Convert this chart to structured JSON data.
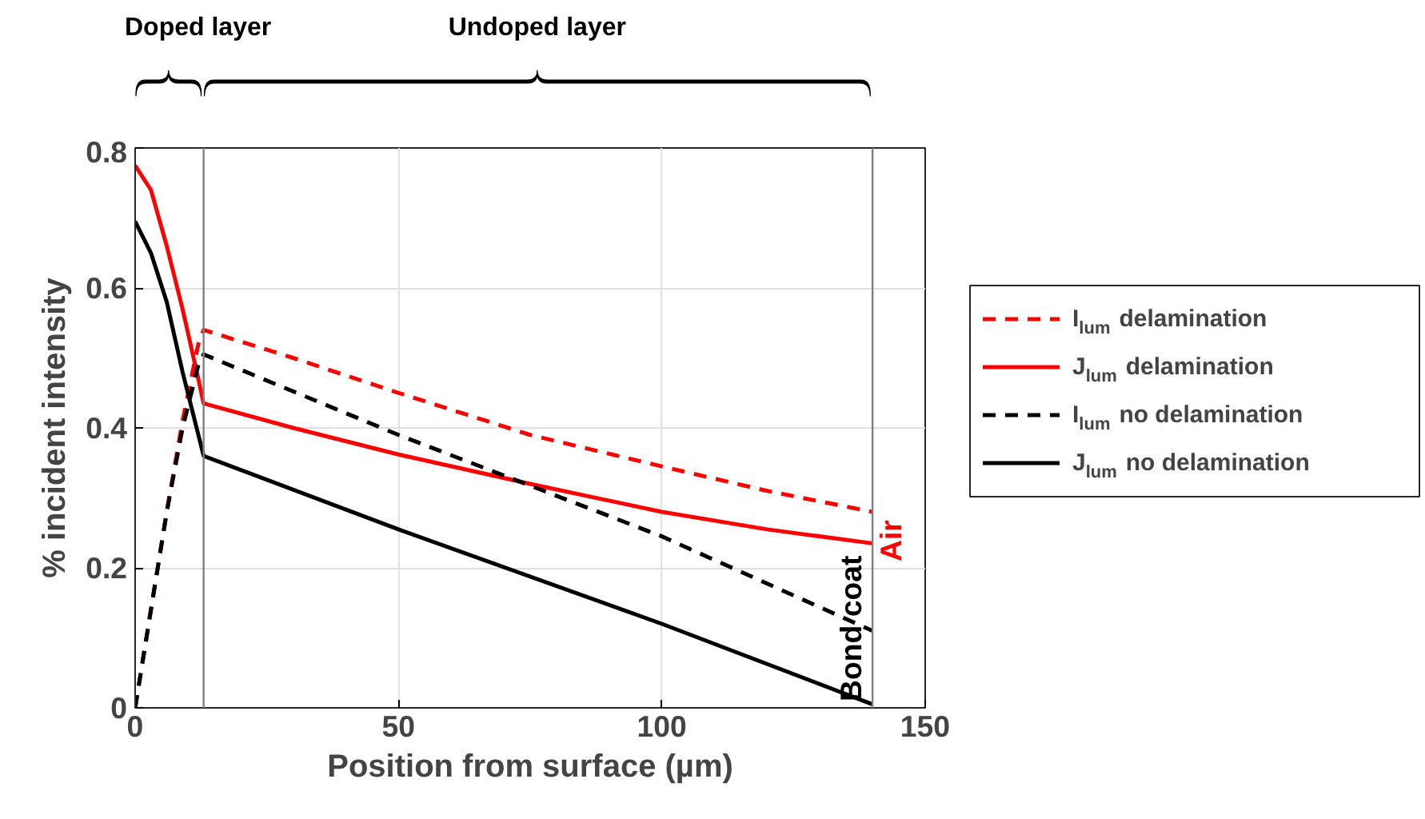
{
  "chart_data": {
    "type": "line",
    "xlabel": "Position from surface (µm)",
    "ylabel": "% incident intensity",
    "xlim": [
      0,
      150
    ],
    "ylim": [
      0,
      0.8
    ],
    "xticks": [
      0,
      50,
      100,
      150
    ],
    "yticks": [
      0,
      0.2,
      0.4,
      0.6,
      0.8
    ],
    "grid": true,
    "legend": "right",
    "marker": "none",
    "series": [
      {
        "name": "I$_{lum}$ delamination",
        "color": "#ff0000",
        "line_style": "dashed",
        "x": [
          0,
          3,
          6,
          9,
          12,
          13,
          30,
          50,
          75,
          100,
          120,
          140
        ],
        "values": [
          0,
          0.14,
          0.28,
          0.41,
          0.52,
          0.54,
          0.5,
          0.45,
          0.39,
          0.345,
          0.31,
          0.28
        ]
      },
      {
        "name": "J$_{lum}$ delamination",
        "color": "#ff0000",
        "line_style": "solid",
        "x": [
          0,
          3,
          6,
          9,
          12,
          13,
          30,
          50,
          75,
          100,
          120,
          140
        ],
        "values": [
          0.775,
          0.74,
          0.66,
          0.57,
          0.47,
          0.435,
          0.4,
          0.362,
          0.32,
          0.28,
          0.255,
          0.235
        ]
      },
      {
        "name": "I$_{lum}$ no delamination",
        "color": "#000000",
        "line_style": "dashed",
        "x": [
          0,
          3,
          6,
          9,
          12,
          13,
          50,
          100,
          140
        ],
        "values": [
          0,
          0.14,
          0.28,
          0.4,
          0.49,
          0.505,
          0.39,
          0.245,
          0.11
        ]
      },
      {
        "name": "J$_{lum}$ no delamination",
        "color": "#000000",
        "line_style": "solid",
        "x": [
          0,
          3,
          6,
          9,
          12,
          13,
          50,
          100,
          140
        ],
        "values": [
          0.695,
          0.65,
          0.58,
          0.48,
          0.39,
          0.36,
          0.255,
          0.12,
          0.005
        ]
      }
    ],
    "ref_lines": [
      {
        "axis": "x",
        "value": 13,
        "color": "#808080"
      },
      {
        "axis": "x",
        "value": 140,
        "color": "#808080"
      }
    ],
    "annotations": [
      "Doped layer",
      "Undoped layer",
      "Bond coat",
      "Air"
    ]
  }
}
